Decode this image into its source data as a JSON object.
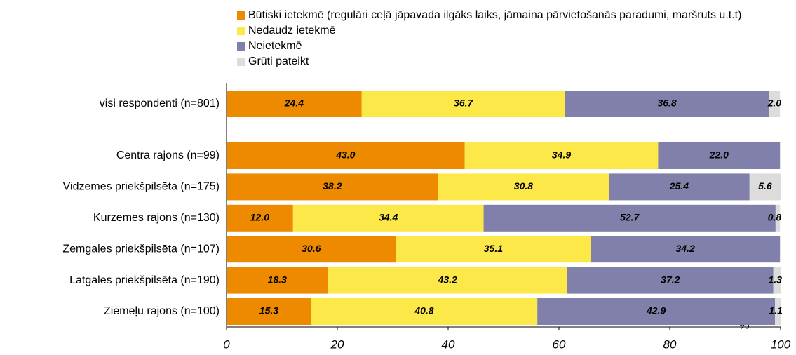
{
  "chart_data": {
    "type": "stacked-bar-horizontal",
    "categories": [
      "visi respondenti (n=801)",
      null,
      "Centra rajons (n=99)",
      "Vidzemes priekšpilsēta (n=175)",
      "Kurzemes rajons (n=130)",
      "Zemgales priekšpilsēta (n=107)",
      "Latgales priekšpilsēta (n=190)",
      "Ziemeļu rajons (n=100)"
    ],
    "series": [
      {
        "name": "Būtiski ietekmē (regulāri ceļā jāpavada ilgāks laiks, jāmaina pārvietošanās paradumi, maršruts u.t.t)",
        "color": "#ee8a00",
        "label_color": "#ffffff",
        "values": [
          24.4,
          null,
          43.0,
          38.2,
          12.0,
          30.6,
          18.3,
          15.3
        ],
        "value_labels": [
          "24.4",
          null,
          "43.0",
          "38.2",
          "12.0",
          "30.6",
          "18.3",
          "15.3"
        ]
      },
      {
        "name": "Nedaudz ietekmē",
        "color": "#fde84a",
        "label_color": "#000000",
        "values": [
          36.7,
          null,
          34.9,
          30.8,
          34.4,
          35.1,
          43.2,
          40.8
        ],
        "value_labels": [
          "36.7",
          null,
          "34.9",
          "30.8",
          "34.4",
          "35.1",
          "43.2",
          "40.8"
        ]
      },
      {
        "name": "Neietekmē",
        "color": "#8080aa",
        "label_color": "#000000",
        "values": [
          36.8,
          null,
          22.0,
          25.4,
          52.7,
          34.2,
          37.2,
          42.9
        ],
        "value_labels": [
          "36.8",
          null,
          "22.0",
          "25.4",
          "52.7",
          "34.2",
          "37.2",
          "42.9"
        ]
      },
      {
        "name": "Grūti pateikt",
        "color": "#dcdcdc",
        "label_color": "#000000",
        "values": [
          2.0,
          null,
          null,
          5.6,
          0.8,
          null,
          1.3,
          1.1
        ],
        "value_labels": [
          "2.0",
          null,
          null,
          "5.6",
          "0.8",
          null,
          "1.3",
          "1.1"
        ]
      }
    ],
    "xlabel": "%",
    "xlim": [
      0,
      100
    ],
    "xticks": [
      0,
      20,
      40,
      60,
      80,
      100
    ]
  }
}
